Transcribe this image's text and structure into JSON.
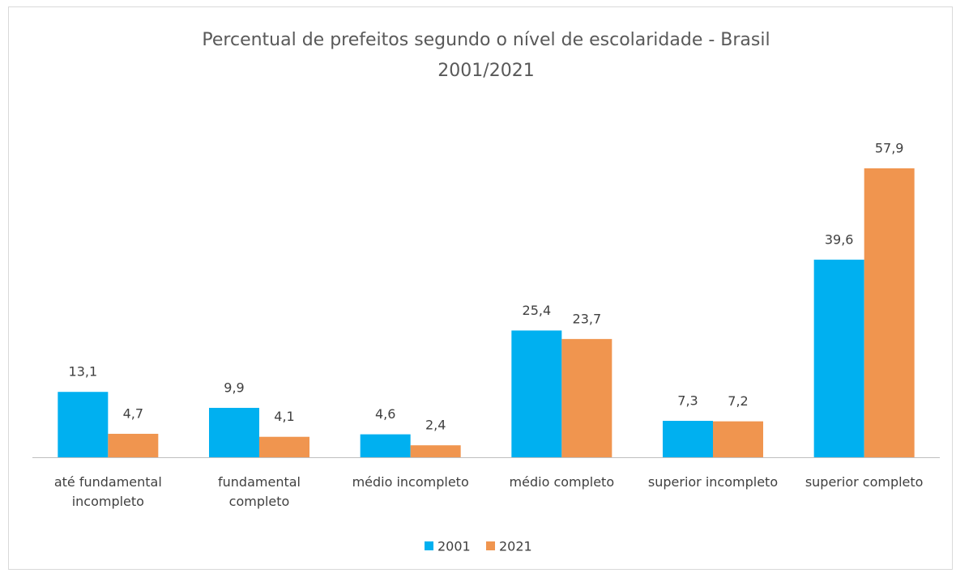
{
  "chart_data": {
    "type": "bar",
    "title": "Percentual de prefeitos segundo o nível de escolaridade - Brasil",
    "subtitle": "2001/2021",
    "categories": [
      "até fundamental incompleto",
      "fundamental completo",
      "médio incompleto",
      "médio completo",
      "superior incompleto",
      "superior completo"
    ],
    "series": [
      {
        "name": "2001",
        "color": "#00b0f0",
        "values": [
          13.1,
          9.9,
          4.6,
          25.4,
          7.3,
          39.6
        ],
        "value_labels": [
          "13,1",
          "9,9",
          "4,6",
          "25,4",
          "7,3",
          "39,6"
        ]
      },
      {
        "name": "2021",
        "color": "#f0954f",
        "values": [
          4.7,
          4.1,
          2.4,
          23.7,
          7.2,
          57.9
        ],
        "value_labels": [
          "4,7",
          "4,1",
          "2,4",
          "23,7",
          "7,2",
          "57,9"
        ]
      }
    ],
    "legend": "bottom"
  }
}
